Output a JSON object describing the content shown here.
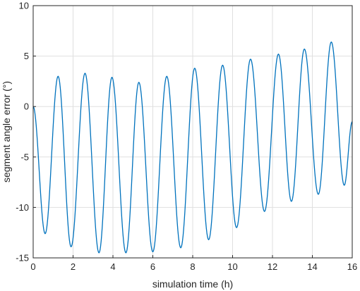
{
  "chart_data": {
    "type": "line",
    "xlabel": "simulation time (h)",
    "ylabel": "segment angle error (°)",
    "xlim": [
      0,
      16
    ],
    "ylim": [
      -15,
      10
    ],
    "grid": true,
    "x_ticks": [
      0,
      2,
      4,
      6,
      8,
      10,
      12,
      14,
      16
    ],
    "y_ticks": [
      -15,
      -10,
      -5,
      0,
      5,
      10
    ],
    "x_tick_labels": [
      "0",
      "2",
      "4",
      "6",
      "8",
      "10",
      "12",
      "14",
      "16"
    ],
    "y_tick_labels": [
      "-15",
      "-10",
      "-5",
      "0",
      "5",
      "10"
    ],
    "series": [
      {
        "color": "#0072BD",
        "extrema": [
          {
            "x": 0.0,
            "y": 0.0
          },
          {
            "x": 0.6,
            "y": -12.6
          },
          {
            "x": 1.25,
            "y": 3.0
          },
          {
            "x": 1.9,
            "y": -13.9
          },
          {
            "x": 2.6,
            "y": 3.3
          },
          {
            "x": 3.3,
            "y": -14.5
          },
          {
            "x": 3.95,
            "y": 2.9
          },
          {
            "x": 4.65,
            "y": -14.5
          },
          {
            "x": 5.3,
            "y": 2.4
          },
          {
            "x": 6.0,
            "y": -14.4
          },
          {
            "x": 6.7,
            "y": 3.0
          },
          {
            "x": 7.4,
            "y": -14.0
          },
          {
            "x": 8.1,
            "y": 3.8
          },
          {
            "x": 8.8,
            "y": -13.2
          },
          {
            "x": 9.5,
            "y": 4.1
          },
          {
            "x": 10.2,
            "y": -12.0
          },
          {
            "x": 10.9,
            "y": 4.7
          },
          {
            "x": 11.6,
            "y": -10.4
          },
          {
            "x": 12.3,
            "y": 5.2
          },
          {
            "x": 12.95,
            "y": -9.4
          },
          {
            "x": 13.6,
            "y": 5.7
          },
          {
            "x": 14.3,
            "y": -8.7
          },
          {
            "x": 14.95,
            "y": 6.4
          },
          {
            "x": 15.6,
            "y": -7.8
          },
          {
            "x": 16.0,
            "y": -1.5
          }
        ]
      }
    ]
  }
}
